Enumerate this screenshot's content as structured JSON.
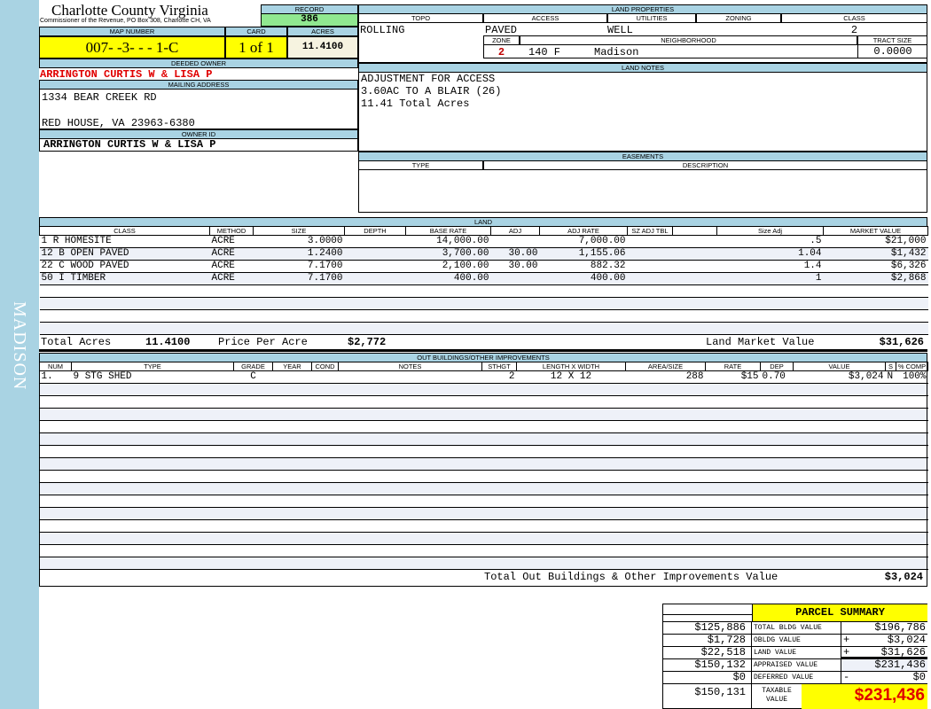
{
  "side_label": "MADISON",
  "header": {
    "title": "Charlotte County Virginia",
    "subtitle": "Commissioner of the Revenue, PO Box 308, Charlotte CH, VA"
  },
  "record": {
    "label": "RECORD",
    "value": "386"
  },
  "map": {
    "label": "MAP NUMBER",
    "value": "007- -3- - - 1-C",
    "card_label": "CARD",
    "card": "1 of 1",
    "acres_label": "ACRES",
    "acres": "11.4100"
  },
  "owner": {
    "deeded_label": "DEEDED OWNER",
    "deeded": "ARRINGTON CURTIS W & LISA P",
    "mailing_label": "MAILING ADDRESS",
    "address1": "1334 BEAR CREEK RD",
    "address2": "RED HOUSE, VA 23963-6380",
    "owner_id_label": "OWNER ID",
    "owner_id": "ARRINGTON CURTIS W & LISA P"
  },
  "land_properties": {
    "label": "LAND PROPERTIES",
    "topo_label": "TOPO",
    "access_label": "ACCESS",
    "utilities_label": "UTILITIES",
    "zoning_label": "ZONING",
    "class_label": "CLASS",
    "topo": "ROLLING",
    "access": "PAVED",
    "utilities": "WELL",
    "zoning": "",
    "class": "2",
    "zone_label": "ZONE",
    "neighborhood_label": "NEIGHBORHOOD",
    "tract_label": "TRACT SIZE",
    "zone": "2",
    "neighborhood_code": "140 F",
    "neighborhood": "Madison",
    "tract": "0.0000"
  },
  "land_notes": {
    "label": "LAND NOTES",
    "lines": [
      "ADJUSTMENT FOR ACCESS",
      "3.60AC TO A BLAIR (26)",
      "11.41 Total Acres"
    ]
  },
  "easements": {
    "label": "EASEMENTS",
    "type_label": "TYPE",
    "desc_label": "DESCRIPTION"
  },
  "land": {
    "label": "LAND",
    "columns": [
      "CLASS",
      "METHOD",
      "SIZE",
      "DEPTH",
      "BASE RATE",
      "ADJ",
      "ADJ RATE",
      "SZ ADJ TBL",
      "",
      "Size Adj",
      "MARKET VALUE"
    ],
    "rows": [
      [
        "1 R HOMESITE",
        "ACRE",
        "3.0000",
        "",
        "14,000.00",
        "",
        "7,000.00",
        "",
        "",
        ".5",
        "$21,000"
      ],
      [
        "12 B OPEN PAVED",
        "ACRE",
        "1.2400",
        "",
        "3,700.00",
        "30.00",
        "1,155.06",
        "",
        "",
        "1.04",
        "$1,432"
      ],
      [
        "22 C WOOD PAVED",
        "ACRE",
        "7.1700",
        "",
        "2,100.00",
        "30.00",
        "882.32",
        "",
        "",
        "1.4",
        "$6,326"
      ],
      [
        "50 I TIMBER",
        "ACRE",
        "7.1700",
        "",
        "400.00",
        "",
        "400.00",
        "",
        "",
        "1",
        "$2,868"
      ]
    ],
    "total_acres_label": "Total Acres",
    "total_acres": "11.4100",
    "ppa_label": "Price Per Acre",
    "ppa": "$2,772",
    "lmv_label": "Land Market Value",
    "lmv": "$31,626"
  },
  "outbuildings": {
    "label": "OUT BUILDINGS/OTHER IMPROVEMENTS",
    "columns": [
      "NUM",
      "TYPE",
      "GRADE",
      "YEAR",
      "COND",
      "NOTES",
      "STHGT",
      "LENGTH X WIDTH",
      "AREA/SIZE",
      "RATE",
      "DEP",
      "VALUE",
      "S",
      "% COMP"
    ],
    "rows": [
      [
        "1.",
        "9 STG SHED",
        "C",
        "",
        "",
        "",
        "2",
        "12 X 12",
        "288",
        "$15",
        "0.70",
        "$3,024",
        "N",
        "100%"
      ]
    ],
    "total_label": "Total Out Buildings & Other Improvements Value",
    "total": "$3,024"
  },
  "summary": {
    "title": "PARCEL SUMMARY",
    "rows": [
      {
        "left": "$125,886",
        "label": "TOTAL BLDG VALUE",
        "op": "",
        "value": "$196,786"
      },
      {
        "left": "$1,728",
        "label": "OBLDG VALUE",
        "op": "+",
        "value": "$3,024"
      },
      {
        "left": "$22,518",
        "label": "LAND VALUE",
        "op": "+",
        "value": "$31,626"
      },
      {
        "left": "$150,132",
        "label": "APPRAISED VALUE",
        "op": "",
        "value": "$231,436"
      },
      {
        "left": "$0",
        "label": "DEFERRED VALUE",
        "op": "-",
        "value": "$0"
      }
    ],
    "taxable_left": "$150,131",
    "taxable_label": "TAXABLE VALUE",
    "taxable": "$231,436"
  },
  "colors": {
    "header_blue": "#a9d3e3",
    "yellow": "#ffff00",
    "green": "#90e890",
    "red": "#e00000"
  }
}
